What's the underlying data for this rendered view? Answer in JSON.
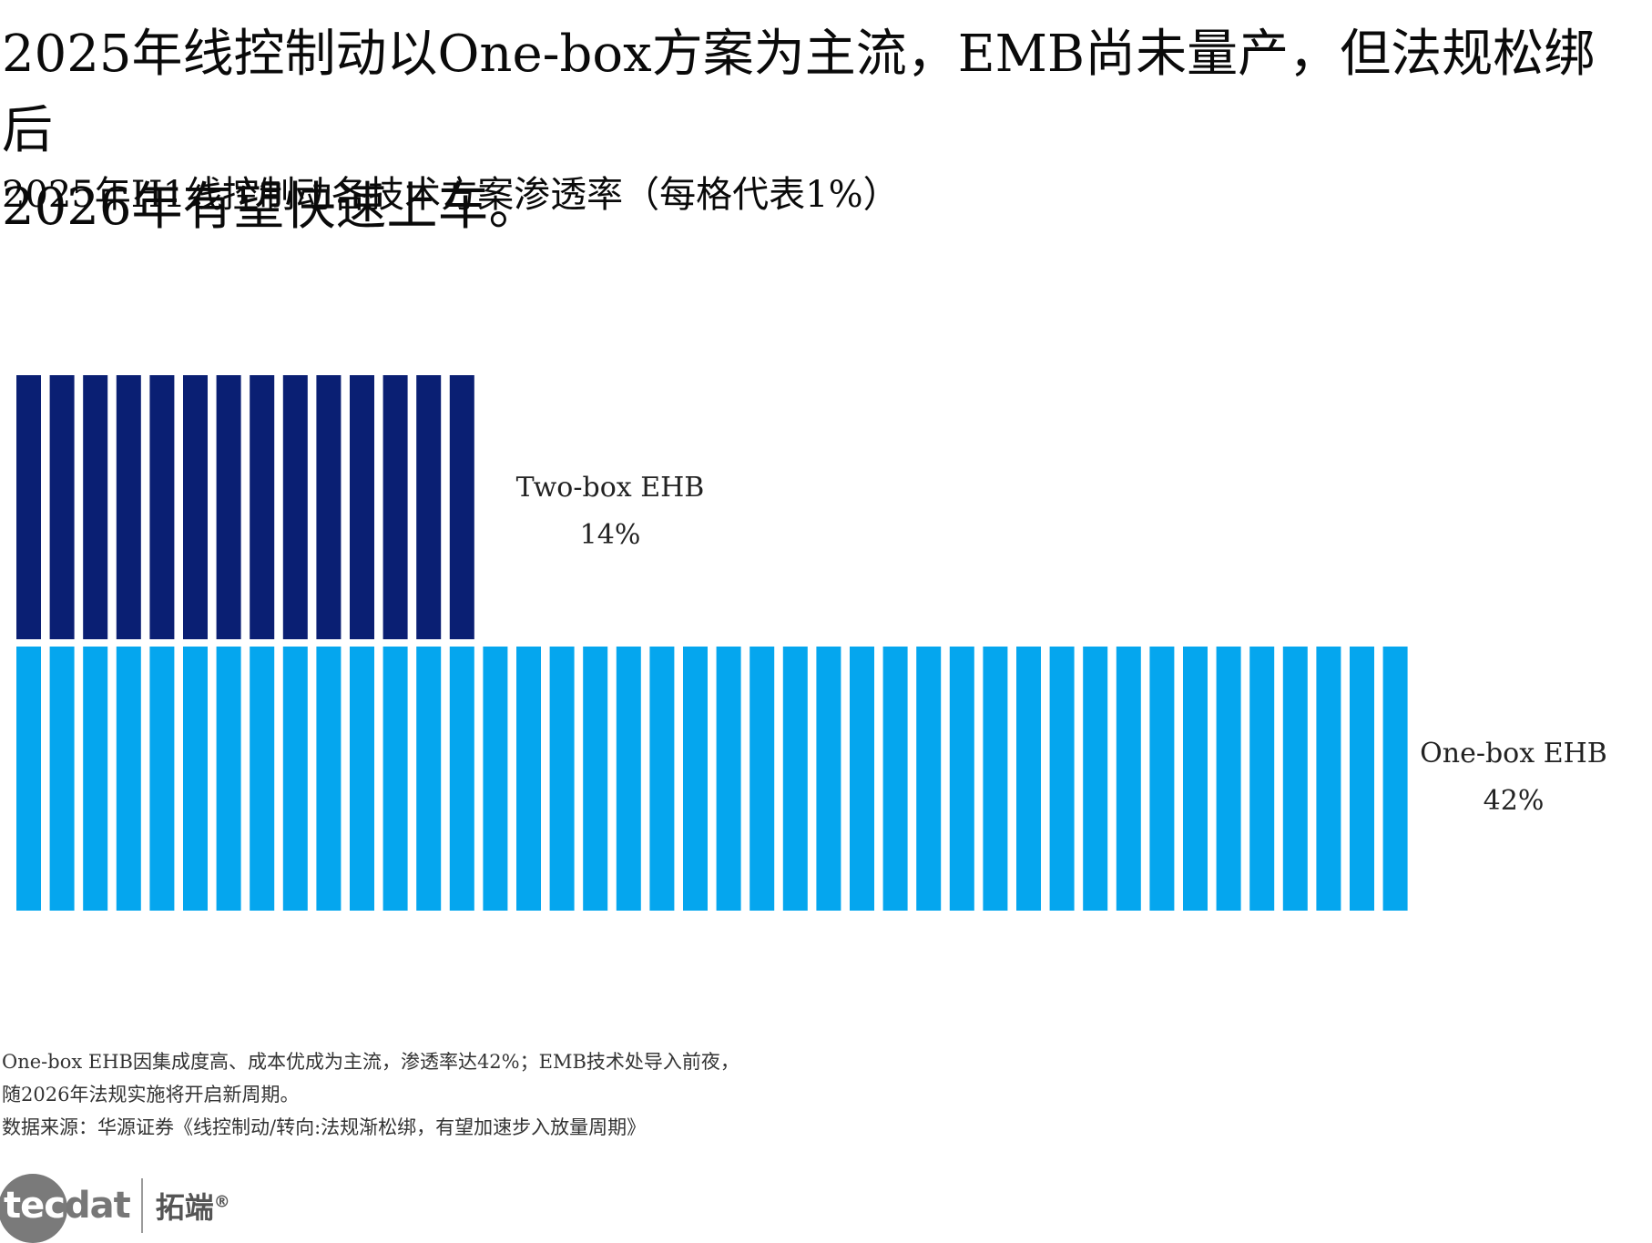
{
  "header": {
    "title_line1": "2025年线控制动以One-box方案为主流，EMB尚未量产，但法规松绑后",
    "title_line2": "2026年有望快速上车。",
    "subtitle": "2025年H1线控制动各技术方案渗透率（每格代表1%）"
  },
  "chart_data": {
    "type": "bar",
    "unit_per_cell": "1%",
    "series": [
      {
        "name": "Two-box EHB",
        "value": 14,
        "value_label": "14%",
        "color": "#0a1f73"
      },
      {
        "name": "One-box EHB",
        "value": 42,
        "value_label": "42%",
        "color": "#05a6ee"
      }
    ]
  },
  "footer": {
    "note_line1": "One-box EHB因集成度高、成本优成为主流，渗透率达42%；EMB技术处导入前夜，",
    "note_line2": "随2026年法规实施将开启新周期。",
    "source": "数据来源：华源证券《线控制动/转向:法规渐松绑，有望加速步入放量周期》"
  },
  "logo": {
    "mark_part1": "tec",
    "mark_part2": "dat",
    "cn_name": "拓端",
    "registered": "®"
  }
}
